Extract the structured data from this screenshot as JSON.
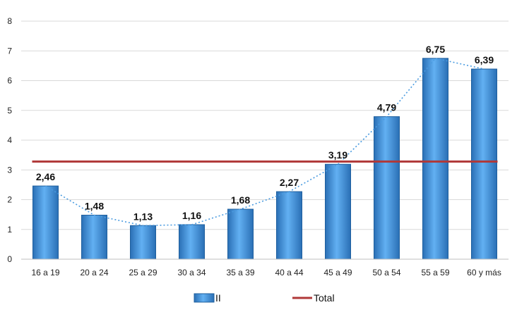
{
  "chart_data": {
    "type": "bar",
    "categories": [
      "16 a 19",
      "20 a 24",
      "25 a 29",
      "30 a 34",
      "35 a 39",
      "40 a 44",
      "45 a 49",
      "50 a 54",
      "55 a 59",
      "60 y más"
    ],
    "series": [
      {
        "name": "II",
        "type": "bar",
        "values": [
          2.46,
          1.48,
          1.13,
          1.16,
          1.68,
          2.27,
          3.19,
          4.79,
          6.75,
          6.39
        ],
        "color": "#4a9be0",
        "trendline": "dotted"
      },
      {
        "name": "Total",
        "type": "line",
        "value": 3.28,
        "color": "#b03838"
      }
    ],
    "data_labels": [
      "2,46",
      "1,48",
      "1,13",
      "1,16",
      "1,68",
      "2,27",
      "3,19",
      "4,79",
      "6,75",
      "6,39"
    ],
    "y_ticks": [
      "0",
      "1",
      "2",
      "3",
      "4",
      "5",
      "6",
      "7",
      "8"
    ],
    "ylim": [
      0,
      8
    ],
    "grid": true,
    "legend_position": "bottom"
  }
}
